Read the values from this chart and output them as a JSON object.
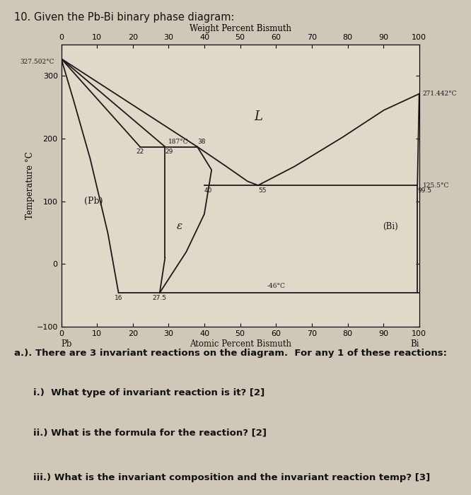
{
  "title_main": "10. Given the Pb-Bi binary phase diagram:",
  "top_xlabel": "Weight Percent Bismuth",
  "bottom_xlabel": "Atomic Percent Bismuth",
  "ylabel": "Temperature °C",
  "xlim": [
    0,
    100
  ],
  "ylim": [
    -100,
    350
  ],
  "xticks": [
    0,
    10,
    20,
    30,
    40,
    50,
    60,
    70,
    80,
    90,
    100
  ],
  "yticks": [
    -100,
    0,
    100,
    200,
    300
  ],
  "pb_label": "Pb",
  "bi_label": "Bi",
  "label_L": "L",
  "label_Pb": "(Pb)",
  "label_epsilon": "ε",
  "label_Bi": "(Bi)",
  "annotation_pb_mp": "327.502°C",
  "annotation_bi_mp": "271.442°C",
  "annotation_125": "125.5°C",
  "annotation_187": "187°C",
  "annotation_neg46": "-46°C",
  "annotation_22": "22",
  "annotation_29": "29",
  "annotation_38": "38",
  "annotation_40": "40",
  "annotation_55": "55",
  "annotation_99": "99.5",
  "annotation_16": "16",
  "annotation_27": "27.5",
  "background_color": "#cfc8b8",
  "plot_bg_color": "#e0d8c8",
  "line_color": "#1a1a1a",
  "text_color": "#111111",
  "questions": [
    "a.). There are 3 invariant reactions on the diagram.  For any 1 of these reactions:",
    "i.)  What type of invariant reaction is it? [2]",
    "ii.) What is the formula for the reaction? [2]",
    "iii.) What is the invariant composition and the invariant reaction temp? [3]"
  ]
}
